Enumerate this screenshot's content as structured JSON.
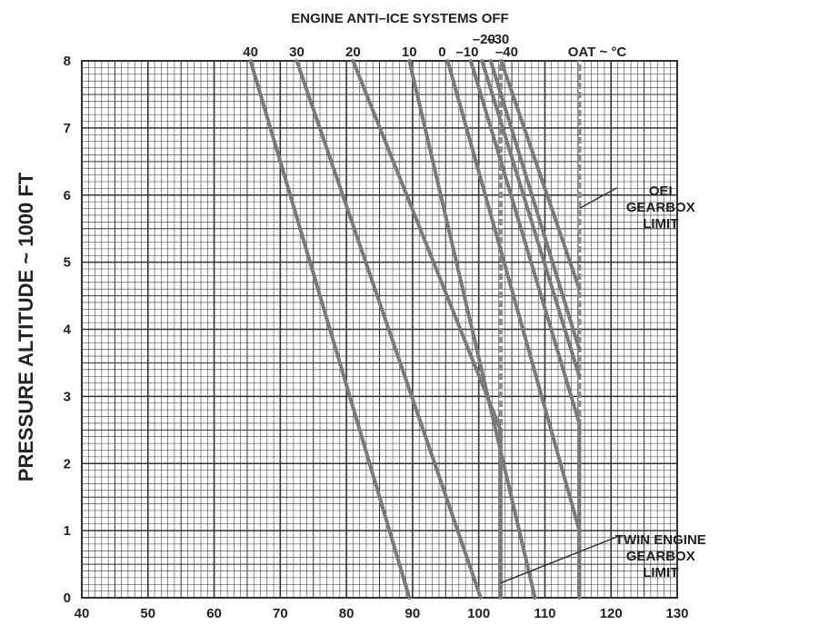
{
  "chart_data": {
    "type": "line",
    "title": "ENGINE ANTI–ICE SYSTEMS OFF",
    "xlabel": "",
    "ylabel": "PRESSURE ALTITUDE ~ 1000 FT",
    "xlim": [
      40,
      130
    ],
    "ylim": [
      0,
      8
    ],
    "x_ticks": [
      "40",
      "50",
      "60",
      "70",
      "80",
      "90",
      "100",
      "110",
      "120",
      "130"
    ],
    "y_ticks": [
      "0",
      "1",
      "2",
      "3",
      "4",
      "5",
      "6",
      "7",
      "8"
    ],
    "grid": true,
    "top_labels": [
      "40",
      "30",
      "20",
      "10",
      "0",
      "–10",
      "–20",
      "–30",
      "–40"
    ],
    "top_label_xs": [
      65.5,
      72.5,
      81.0,
      89.5,
      95.3,
      98.8,
      100.5,
      101.8,
      103.4
    ],
    "oat_label": "OAT ~ °C",
    "series": [
      {
        "name": "40",
        "points": [
          [
            65.5,
            8
          ],
          [
            89.5,
            0
          ]
        ]
      },
      {
        "name": "30",
        "points": [
          [
            72.5,
            8
          ],
          [
            100.3,
            0
          ]
        ]
      },
      {
        "name": "20",
        "points": [
          [
            81.0,
            8
          ],
          [
            103.3,
            2.5
          ],
          [
            103.3,
            0
          ]
        ]
      },
      {
        "name": "10",
        "points": [
          [
            89.5,
            8
          ],
          [
            108.5,
            0
          ]
        ]
      },
      {
        "name": "0",
        "points": [
          [
            95.3,
            8
          ],
          [
            115.2,
            1.0
          ],
          [
            115.2,
            0
          ]
        ]
      },
      {
        "name": "–10",
        "points": [
          [
            98.8,
            8
          ],
          [
            115.2,
            2.6
          ],
          [
            115.2,
            0
          ]
        ]
      },
      {
        "name": "–20",
        "points": [
          [
            100.5,
            8
          ],
          [
            115.2,
            3.3
          ]
        ]
      },
      {
        "name": "–30",
        "points": [
          [
            101.8,
            8
          ],
          [
            115.2,
            3.7
          ]
        ]
      },
      {
        "name": "–40",
        "points": [
          [
            103.4,
            8
          ],
          [
            115.2,
            4.6
          ]
        ]
      }
    ],
    "limits": [
      {
        "name": "OEI GEARBOX LIMIT",
        "x": 115.2,
        "y_range": [
          0,
          8
        ]
      },
      {
        "name": "TWIN ENGINE GEARBOX LIMIT",
        "x": 103.3,
        "y_range": [
          0,
          8
        ]
      }
    ],
    "annotations": [
      {
        "lines": [
          "OEI",
          "GEARBOX",
          "LIMIT"
        ],
        "target": [
          115.2,
          5.8
        ],
        "text_anchor": [
          127.5,
          6.0
        ]
      },
      {
        "lines": [
          "TWIN ENGINE",
          "GEARBOX",
          "LIMIT"
        ],
        "target": [
          103.3,
          0.22
        ],
        "text_anchor": [
          127.5,
          0.8
        ]
      }
    ]
  },
  "colors": {
    "grid": "#333333",
    "line": "#7a7a7a",
    "text": "#222222",
    "background": "#ffffff"
  }
}
